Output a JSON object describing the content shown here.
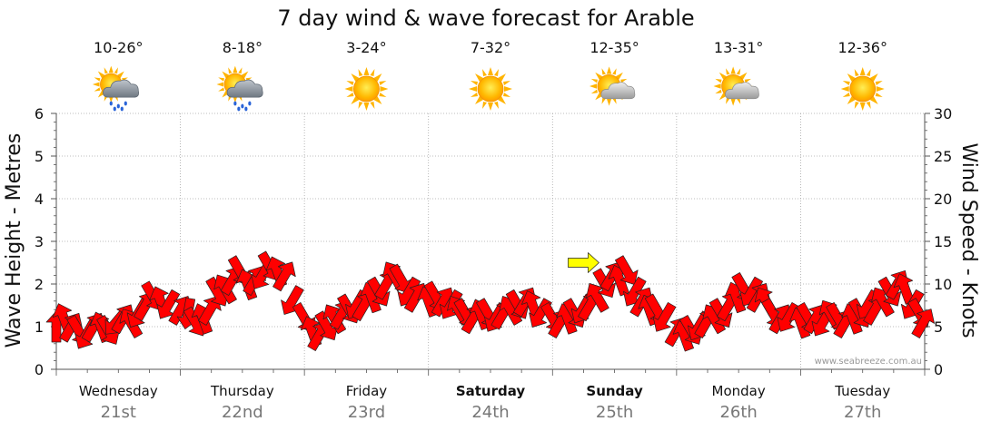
{
  "chart_data": {
    "type": "line",
    "title": "7 day wind & wave forecast for Arable",
    "ylabel_left": "Wave Height - Metres",
    "ylabel_right": "Wind Speed - Knots",
    "ylim_left": [
      0,
      6
    ],
    "ylim_right": [
      0,
      30
    ],
    "left_ticks": [
      "0",
      "1",
      "2",
      "3",
      "4",
      "5",
      "6"
    ],
    "right_ticks": [
      "0",
      "5",
      "10",
      "15",
      "20",
      "25",
      "30"
    ],
    "grid": true,
    "watermark": "www.seabreeze.com.au",
    "days": [
      {
        "name": "Wednesday",
        "date": "21st",
        "bold": false,
        "temp": "10-26°",
        "icon": "rain-cloud-sun-icon"
      },
      {
        "name": "Thursday",
        "date": "22nd",
        "bold": false,
        "temp": "8-18°",
        "icon": "rain-cloud-sun-icon"
      },
      {
        "name": "Friday",
        "date": "23rd",
        "bold": false,
        "temp": "3-24°",
        "icon": "sun-icon"
      },
      {
        "name": "Saturday",
        "date": "24th",
        "bold": true,
        "temp": "7-32°",
        "icon": "sun-icon"
      },
      {
        "name": "Sunday",
        "date": "25th",
        "bold": true,
        "temp": "12-35°",
        "icon": "partly-cloudy-icon"
      },
      {
        "name": "Monday",
        "date": "26th",
        "bold": false,
        "temp": "13-31°",
        "icon": "partly-cloudy-icon"
      },
      {
        "name": "Tuesday",
        "date": "27th",
        "bold": false,
        "temp": "12-36°",
        "icon": "sun-icon"
      }
    ],
    "series": [
      {
        "name": "Wind Speed",
        "color": "#ff0000",
        "unit": "knots",
        "points": [
          [
            0.0,
            5.0,
            270
          ],
          [
            0.06,
            6.0,
            250
          ],
          [
            0.12,
            5.0,
            300
          ],
          [
            0.18,
            4.5,
            60
          ],
          [
            0.24,
            4.0,
            120
          ],
          [
            0.3,
            5.0,
            300
          ],
          [
            0.36,
            5.0,
            250
          ],
          [
            0.42,
            4.5,
            60
          ],
          [
            0.48,
            5.5,
            130
          ],
          [
            0.54,
            6.0,
            300
          ],
          [
            0.6,
            5.5,
            240
          ],
          [
            0.66,
            6.5,
            120
          ],
          [
            0.72,
            7.5,
            300
          ],
          [
            0.78,
            8.5,
            60
          ],
          [
            0.84,
            8.0,
            250
          ],
          [
            0.9,
            7.5,
            120
          ],
          [
            1.0,
            7.0,
            300
          ],
          [
            1.06,
            6.5,
            100
          ],
          [
            1.12,
            5.5,
            60
          ],
          [
            1.18,
            6.0,
            250
          ],
          [
            1.24,
            7.0,
            300
          ],
          [
            1.3,
            9.0,
            60
          ],
          [
            1.36,
            9.5,
            240
          ],
          [
            1.42,
            10.5,
            300
          ],
          [
            1.48,
            11.5,
            60
          ],
          [
            1.54,
            10.0,
            250
          ],
          [
            1.6,
            10.5,
            300
          ],
          [
            1.66,
            11.0,
            120
          ],
          [
            1.72,
            12.0,
            60
          ],
          [
            1.78,
            11.5,
            250
          ],
          [
            1.84,
            11.0,
            300
          ],
          [
            1.9,
            8.0,
            120
          ],
          [
            2.0,
            6.0,
            60
          ],
          [
            2.06,
            4.5,
            250
          ],
          [
            2.12,
            4.0,
            300
          ],
          [
            2.18,
            5.0,
            60
          ],
          [
            2.24,
            6.0,
            240
          ],
          [
            2.3,
            6.5,
            300
          ],
          [
            2.36,
            7.0,
            60
          ],
          [
            2.42,
            7.5,
            120
          ],
          [
            2.48,
            7.5,
            300
          ],
          [
            2.54,
            8.5,
            250
          ],
          [
            2.6,
            9.0,
            60
          ],
          [
            2.66,
            10.0,
            300
          ],
          [
            2.72,
            11.0,
            240
          ],
          [
            2.78,
            10.5,
            60
          ],
          [
            2.84,
            9.0,
            120
          ],
          [
            2.9,
            8.5,
            300
          ],
          [
            3.0,
            8.0,
            250
          ],
          [
            3.06,
            8.5,
            60
          ],
          [
            3.12,
            8.0,
            300
          ],
          [
            3.18,
            7.5,
            120
          ],
          [
            3.24,
            7.0,
            240
          ],
          [
            3.3,
            6.5,
            60
          ],
          [
            3.36,
            6.0,
            300
          ],
          [
            3.42,
            6.5,
            250
          ],
          [
            3.48,
            6.5,
            60
          ],
          [
            3.54,
            6.0,
            120
          ],
          [
            3.6,
            6.5,
            300
          ],
          [
            3.66,
            7.0,
            240
          ],
          [
            3.72,
            7.5,
            60
          ],
          [
            3.78,
            8.0,
            300
          ],
          [
            3.84,
            7.5,
            250
          ],
          [
            3.9,
            6.5,
            120
          ],
          [
            4.0,
            6.0,
            60
          ],
          [
            4.06,
            5.5,
            300
          ],
          [
            4.12,
            6.0,
            250
          ],
          [
            4.18,
            6.5,
            60
          ],
          [
            4.24,
            7.0,
            120
          ],
          [
            4.3,
            7.5,
            300
          ],
          [
            4.36,
            8.5,
            240
          ],
          [
            4.42,
            10.0,
            60
          ],
          [
            4.48,
            11.0,
            300
          ],
          [
            4.54,
            10.5,
            250
          ],
          [
            4.6,
            11.5,
            60
          ],
          [
            4.66,
            9.0,
            120
          ],
          [
            4.72,
            8.0,
            300
          ],
          [
            4.78,
            7.0,
            250
          ],
          [
            4.84,
            7.0,
            60
          ],
          [
            4.9,
            6.0,
            120
          ],
          [
            5.0,
            4.5,
            300
          ],
          [
            5.06,
            4.0,
            250
          ],
          [
            5.12,
            4.5,
            60
          ],
          [
            5.18,
            5.0,
            120
          ],
          [
            5.24,
            5.5,
            300
          ],
          [
            5.3,
            6.0,
            240
          ],
          [
            5.36,
            6.5,
            60
          ],
          [
            5.42,
            7.5,
            300
          ],
          [
            5.48,
            8.5,
            250
          ],
          [
            5.54,
            9.5,
            60
          ],
          [
            5.6,
            9.0,
            120
          ],
          [
            5.66,
            8.5,
            300
          ],
          [
            5.72,
            8.0,
            240
          ],
          [
            5.78,
            6.5,
            60
          ],
          [
            5.84,
            6.0,
            300
          ],
          [
            5.9,
            6.0,
            120
          ],
          [
            6.0,
            5.5,
            250
          ],
          [
            6.06,
            6.0,
            60
          ],
          [
            6.12,
            6.0,
            300
          ],
          [
            6.18,
            5.5,
            120
          ],
          [
            6.24,
            6.5,
            240
          ],
          [
            6.3,
            6.0,
            60
          ],
          [
            6.36,
            5.5,
            300
          ],
          [
            6.42,
            6.0,
            250
          ],
          [
            6.48,
            6.5,
            60
          ],
          [
            6.54,
            7.5,
            120
          ],
          [
            6.6,
            7.0,
            300
          ],
          [
            6.66,
            8.0,
            240
          ],
          [
            6.72,
            9.0,
            60
          ],
          [
            6.78,
            10.0,
            300
          ],
          [
            6.84,
            9.5,
            250
          ],
          [
            6.9,
            7.5,
            120
          ],
          [
            6.96,
            6.5,
            60
          ],
          [
            6.99,
            5.5,
            300
          ]
        ]
      },
      {
        "name": "Wave Height",
        "color": "#ffff00",
        "unit": "metres",
        "points": [
          [
            4.25,
            2.5,
            0
          ]
        ]
      }
    ]
  }
}
